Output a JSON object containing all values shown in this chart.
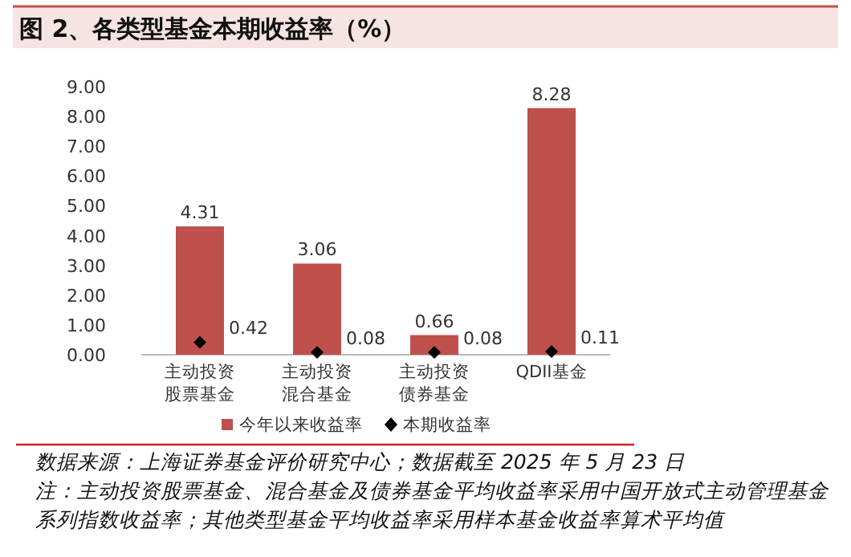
{
  "chart_data": {
    "type": "bar",
    "title": "图 2、各类型基金本期收益率（%）",
    "categories": [
      "主动投资股票基金",
      "主动投资混合基金",
      "主动投资债券基金",
      "QDII基金"
    ],
    "series": [
      {
        "name": "今年以来收益率",
        "color": "#c0504d",
        "values": [
          4.31,
          3.06,
          0.66,
          8.28
        ]
      },
      {
        "name": "本期收益率",
        "type": "scatter",
        "color": "#000000",
        "marker": "diamond",
        "values": [
          0.42,
          0.08,
          0.08,
          0.11
        ]
      }
    ],
    "ylim": [
      0,
      9
    ],
    "yticks": [
      {
        "value": 0,
        "label": "0.00"
      },
      {
        "value": 1,
        "label": "1.00"
      },
      {
        "value": 2,
        "label": "2.00"
      },
      {
        "value": 3,
        "label": "3.00"
      },
      {
        "value": 4,
        "label": "4.00"
      },
      {
        "value": 5,
        "label": "5.00"
      },
      {
        "value": 6,
        "label": "6.00"
      },
      {
        "value": 7,
        "label": "7.00"
      },
      {
        "value": 8,
        "label": "8.00"
      },
      {
        "value": 9,
        "label": "9.00"
      }
    ],
    "data_labels": true,
    "legend": "bottom",
    "annotations": [
      "数据来源：上海证券基金评价研究中心；数据截至 2025 年 5 月 23 日",
      "注：主动投资股票基金、混合基金及债券基金平均收益率采用中国开放式主动管理基金系列指数收益率；其他类型基金平均收益率采用样本基金收益率算术平均值"
    ]
  }
}
